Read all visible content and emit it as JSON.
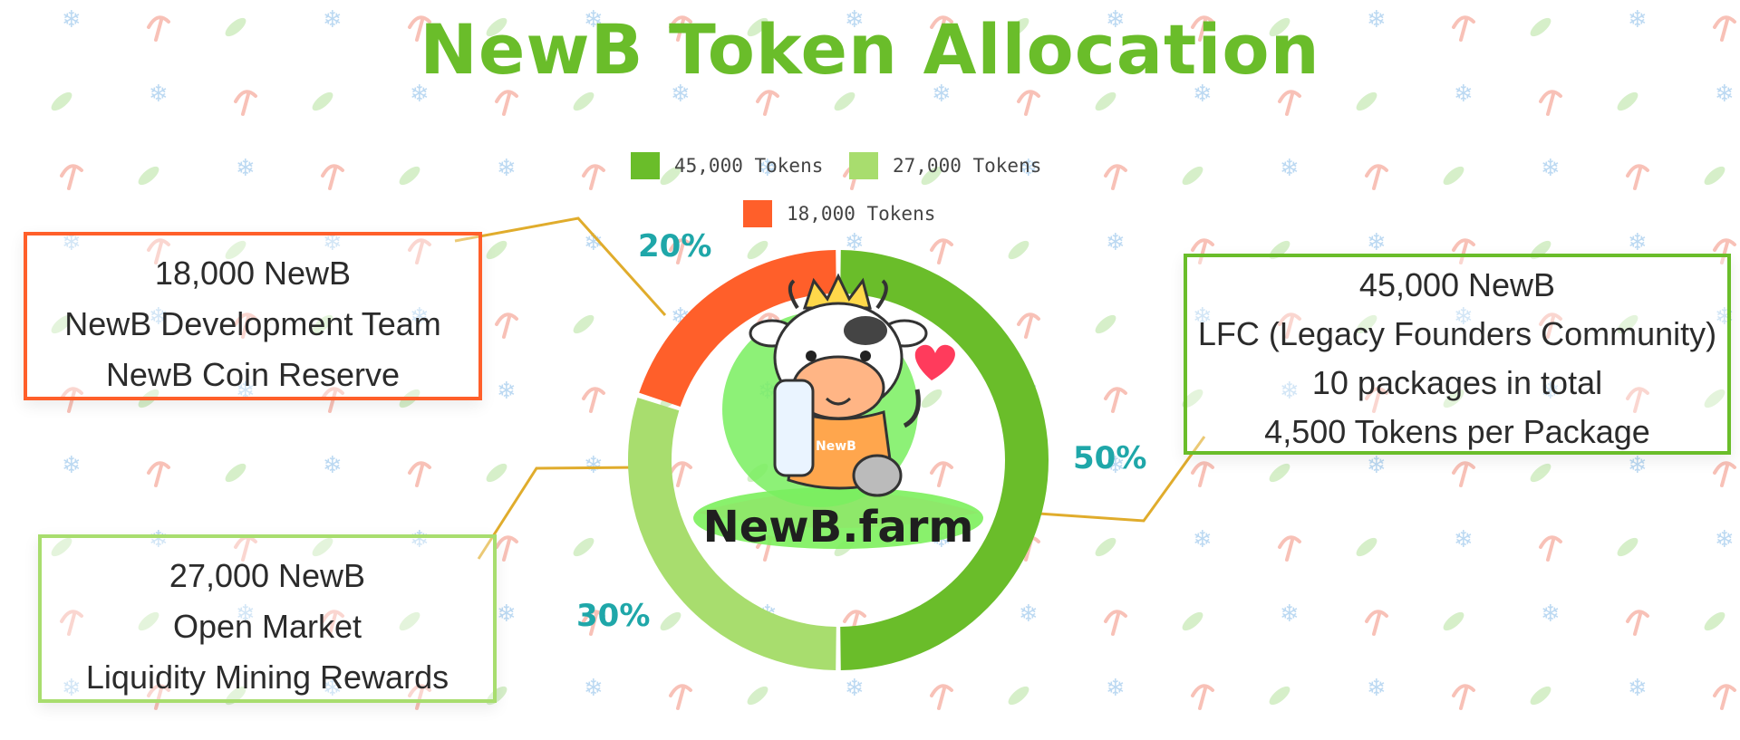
{
  "title": "NewB Token Allocation",
  "colors": {
    "title": "#6abd2a",
    "dark_green": "#6abd2a",
    "light_green": "#a8dd6e",
    "orange": "#ff5f2a",
    "pct_label": "#1fa7a9",
    "leader_line": "#e0ac2c"
  },
  "legend": [
    {
      "label": "45,000 Tokens",
      "color": "#6abd2a"
    },
    {
      "label": "27,000 Tokens",
      "color": "#a8dd6e"
    },
    {
      "label": "18,000 Tokens",
      "color": "#ff5f2a"
    }
  ],
  "chart_data": {
    "type": "pie",
    "donut": true,
    "title": "NewB Token Allocation",
    "slices": [
      {
        "label": "45,000 Tokens",
        "value": 45000,
        "percent_label": "50%",
        "color": "#6abd2a"
      },
      {
        "label": "27,000 Tokens",
        "value": 27000,
        "percent_label": "30%",
        "color": "#a8dd6e"
      },
      {
        "label": "18,000 Tokens",
        "value": 18000,
        "percent_label": "20%",
        "color": "#ff5f2a"
      }
    ],
    "legend_position": "top"
  },
  "callouts": {
    "team": [
      "18,000 NewB",
      "NewB Development Team",
      "NewB Coin Reserve"
    ],
    "market": [
      "27,000 NewB",
      "Open Market",
      "Liquidity Mining Rewards"
    ],
    "lfc": [
      "45,000 NewB",
      "LFC (Legacy Founders Community)",
      "10 packages in total",
      "4,500 Tokens per Package"
    ]
  },
  "logo": {
    "text": "NewB.farm",
    "bottle_text": "NewB"
  }
}
